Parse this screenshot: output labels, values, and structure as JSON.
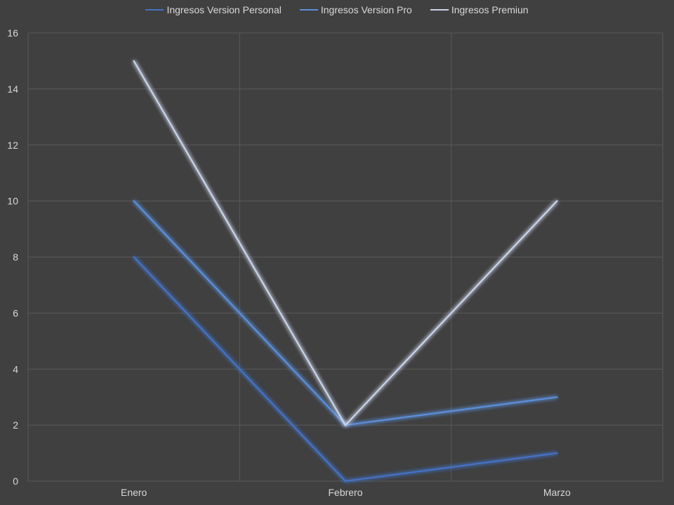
{
  "chart_data": {
    "type": "line",
    "categories": [
      "Enero",
      "Febrero",
      "Marzo"
    ],
    "series": [
      {
        "name": "Ingresos Version Personal",
        "values": [
          8,
          0,
          1
        ],
        "color": "#4472c4"
      },
      {
        "name": "Ingresos Version Pro",
        "values": [
          10,
          2,
          3
        ],
        "color": "#5b8fd9"
      },
      {
        "name": "Ingresos Premiun",
        "values": [
          15,
          2,
          10
        ],
        "color": "#c9d3e8"
      }
    ],
    "title": "",
    "xlabel": "",
    "ylabel": "",
    "ylim": [
      0,
      16
    ],
    "yticks": [
      "0",
      "2",
      "4",
      "6",
      "8",
      "10",
      "12",
      "14",
      "16"
    ],
    "grid": true,
    "legend_position": "top",
    "background": "#404040",
    "gridline_color": "#595959"
  }
}
